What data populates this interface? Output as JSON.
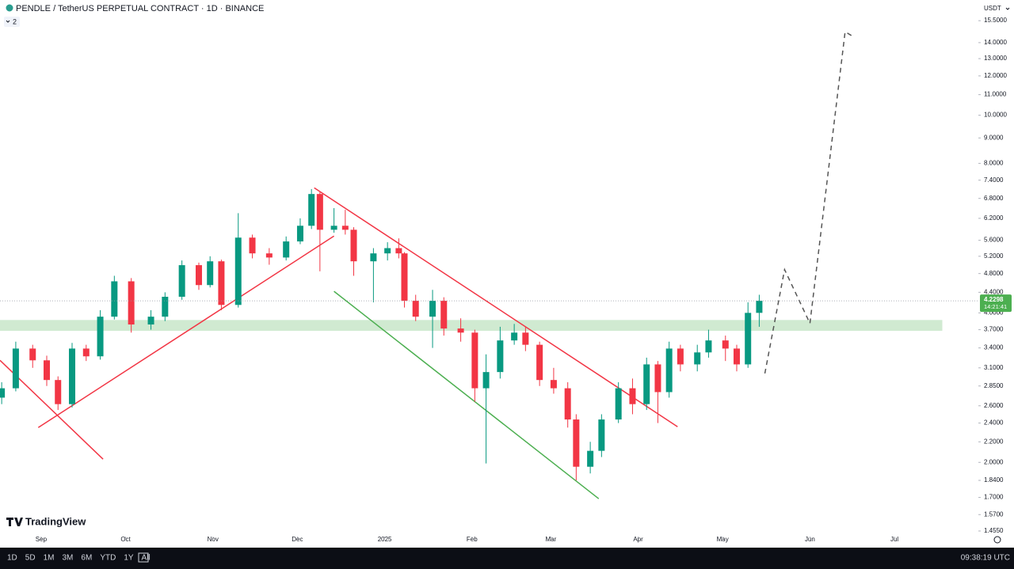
{
  "header": {
    "symbol": "PENDLE / TetherUS PERPETUAL CONTRACT · 1D · BINANCE",
    "indicators": "2",
    "currency": "USDT",
    "logo": "TradingView"
  },
  "toolbar": {
    "ranges": [
      "1D",
      "5D",
      "1M",
      "3M",
      "6M",
      "YTD",
      "1Y",
      "All"
    ],
    "clock": "09:38:19 UTC"
  },
  "chart_data": {
    "type": "candlestick",
    "log_scale": true,
    "grid": false,
    "up_color": "#089981",
    "down_color": "#f23645",
    "xlim": [
      -14.6,
      332.8
    ],
    "ylim": [
      1.347,
      17.06
    ],
    "xticks": [
      {
        "value": 0,
        "label": "Sep"
      },
      {
        "value": 30,
        "label": "Oct"
      },
      {
        "value": 61,
        "label": "Nov"
      },
      {
        "value": 91,
        "label": "Dec"
      },
      {
        "value": 122,
        "label": "2025"
      },
      {
        "value": 153,
        "label": "Feb"
      },
      {
        "value": 181,
        "label": "Mar"
      },
      {
        "value": 212,
        "label": "Apr"
      },
      {
        "value": 242,
        "label": "May"
      },
      {
        "value": 273,
        "label": "Jun"
      },
      {
        "value": 303,
        "label": "Jul"
      }
    ],
    "yticks": [
      {
        "value": 15.5,
        "label": "15.5000"
      },
      {
        "value": 14,
        "label": "14.0000"
      },
      {
        "value": 13,
        "label": "13.0000"
      },
      {
        "value": 12,
        "label": "12.0000"
      },
      {
        "value": 11,
        "label": "11.0000"
      },
      {
        "value": 10,
        "label": "10.0000"
      },
      {
        "value": 9,
        "label": "9.0000"
      },
      {
        "value": 8,
        "label": "8.0000"
      },
      {
        "value": 7.4,
        "label": "7.4000"
      },
      {
        "value": 6.8,
        "label": "6.8000"
      },
      {
        "value": 6.2,
        "label": "6.2000"
      },
      {
        "value": 5.6,
        "label": "5.6000"
      },
      {
        "value": 5.2,
        "label": "5.2000"
      },
      {
        "value": 4.8,
        "label": "4.8000"
      },
      {
        "value": 4.4,
        "label": "4.4000"
      },
      {
        "value": 4,
        "label": "4.0000"
      },
      {
        "value": 3.7,
        "label": "3.7000"
      },
      {
        "value": 3.4,
        "label": "3.4000"
      },
      {
        "value": 3.1,
        "label": "3.1000"
      },
      {
        "value": 2.85,
        "label": "2.8500"
      },
      {
        "value": 2.6,
        "label": "2.6000"
      },
      {
        "value": 2.4,
        "label": "2.4000"
      },
      {
        "value": 2.2,
        "label": "2.2000"
      },
      {
        "value": 2,
        "label": "2.0000"
      },
      {
        "value": 1.84,
        "label": "1.8400"
      },
      {
        "value": 1.7,
        "label": "1.7000"
      },
      {
        "value": 1.57,
        "label": "1.5700"
      },
      {
        "value": 1.455,
        "label": "1.4550"
      }
    ],
    "candles": {
      "x": [
        -14,
        -9,
        -3,
        2,
        6,
        11,
        16,
        21,
        26,
        32,
        39,
        44,
        50,
        56,
        60,
        64,
        70,
        75,
        81,
        87,
        92,
        96,
        99,
        104,
        108,
        111,
        118,
        123,
        127,
        129,
        133,
        139,
        143,
        149,
        154,
        158,
        163,
        168,
        172,
        177,
        182,
        187,
        190,
        195,
        199,
        205,
        210,
        215,
        219,
        223,
        227,
        233,
        237,
        243,
        247,
        251,
        255
      ],
      "open": [
        2.7,
        2.82,
        3.39,
        3.21,
        2.93,
        2.62,
        3.39,
        3.27,
        3.93,
        4.63,
        3.79,
        3.93,
        4.31,
        4.99,
        4.55,
        5.08,
        4.15,
        5.67,
        5.27,
        5.17,
        5.57,
        5.99,
        6.94,
        5.88,
        5.99,
        5.88,
        5.08,
        5.27,
        5.4,
        5.27,
        4.23,
        3.93,
        4.23,
        3.72,
        3.65,
        2.82,
        3.04,
        3.52,
        3.65,
        3.45,
        2.93,
        2.82,
        2.44,
        1.96,
        2.11,
        2.44,
        2.82,
        2.62,
        3.15,
        2.77,
        3.39,
        3.15,
        3.33,
        3.52,
        3.39,
        3.15,
        4.0
      ],
      "high": [
        2.9,
        3.5,
        3.45,
        3.28,
        2.98,
        3.48,
        3.45,
        4.05,
        4.75,
        4.7,
        4.05,
        4.4,
        5.1,
        5.05,
        5.2,
        5.12,
        6.35,
        5.75,
        5.4,
        5.7,
        6.2,
        7.1,
        7.0,
        6.5,
        6.45,
        5.95,
        5.4,
        5.55,
        5.65,
        5.3,
        4.35,
        4.45,
        4.3,
        3.9,
        3.7,
        3.3,
        3.75,
        3.8,
        3.75,
        3.5,
        3.1,
        2.9,
        2.5,
        2.2,
        2.5,
        2.9,
        2.95,
        3.25,
        3.2,
        3.5,
        3.45,
        3.45,
        3.7,
        3.6,
        3.45,
        4.2,
        4.35
      ],
      "low": [
        2.62,
        2.78,
        3.1,
        2.85,
        2.55,
        2.58,
        3.2,
        3.22,
        3.88,
        3.65,
        3.7,
        3.85,
        4.25,
        4.45,
        4.5,
        4.05,
        4.1,
        5.15,
        5.0,
        5.1,
        5.5,
        5.9,
        4.85,
        5.8,
        5.75,
        4.75,
        4.2,
        5.1,
        5.15,
        4.1,
        3.85,
        3.4,
        3.6,
        3.5,
        2.65,
        1.99,
        2.95,
        3.45,
        3.35,
        2.85,
        2.75,
        2.35,
        1.84,
        1.9,
        2.05,
        2.4,
        2.5,
        2.55,
        2.4,
        2.7,
        3.05,
        3.05,
        3.25,
        3.2,
        3.05,
        3.1,
        3.75
      ],
      "close": [
        2.82,
        3.39,
        3.21,
        2.93,
        2.62,
        3.39,
        3.27,
        3.93,
        4.63,
        3.79,
        3.93,
        4.31,
        4.99,
        4.55,
        5.08,
        4.15,
        5.67,
        5.27,
        5.17,
        5.57,
        5.99,
        6.94,
        5.88,
        5.99,
        5.88,
        5.08,
        5.27,
        5.4,
        5.27,
        4.23,
        3.93,
        4.23,
        3.72,
        3.65,
        2.82,
        3.04,
        3.52,
        3.65,
        3.45,
        2.93,
        2.82,
        2.44,
        1.96,
        2.11,
        2.44,
        2.82,
        2.62,
        3.15,
        2.77,
        3.39,
        3.15,
        3.33,
        3.52,
        3.39,
        3.15,
        4.0,
        4.23
      ]
    },
    "last_price": 4.2298,
    "last_color": "#4caf50",
    "countdown": "14:21:41",
    "drawings": [
      {
        "kind": "zone",
        "color": "#c8e6c9",
        "x": [
          -14.6,
          320
        ],
        "y": [
          3.68,
          3.87
        ]
      },
      {
        "kind": "line",
        "color": "#f23645",
        "dashed": false,
        "x": [
          -14.6,
          22
        ],
        "y": [
          3.21,
          2.03
        ]
      },
      {
        "kind": "line",
        "color": "#f23645",
        "dashed": false,
        "x": [
          -1,
          104
        ],
        "y": [
          2.35,
          5.71
        ]
      },
      {
        "kind": "line",
        "color": "#f23645",
        "dashed": false,
        "x": [
          97,
          226
        ],
        "y": [
          7.14,
          2.36
        ]
      },
      {
        "kind": "line",
        "color": "#4caf50",
        "dashed": false,
        "x": [
          104,
          198
        ],
        "y": [
          4.42,
          1.69
        ]
      },
      {
        "kind": "line",
        "color": "#555555",
        "dashed": true,
        "x": [
          257,
          264,
          273,
          285.5,
          288
        ],
        "y": [
          3.02,
          4.89,
          3.81,
          14.72,
          14.44
        ]
      }
    ]
  }
}
